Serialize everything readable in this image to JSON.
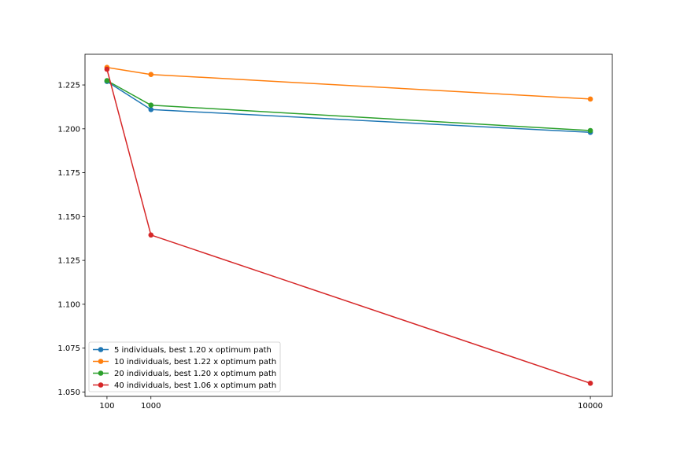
{
  "chart_data": {
    "type": "line",
    "title": "",
    "xlabel": "",
    "ylabel": "",
    "x": [
      100,
      1000,
      10000
    ],
    "xtick_labels": [
      "100",
      "1000",
      "10000"
    ],
    "ylim": [
      1.0475,
      1.2425
    ],
    "xlim": [
      -350,
      10450
    ],
    "yticks": [
      1.05,
      1.075,
      1.1,
      1.125,
      1.15,
      1.175,
      1.2,
      1.225
    ],
    "ytick_labels": [
      "1.050",
      "1.075",
      "1.100",
      "1.125",
      "1.150",
      "1.175",
      "1.200",
      "1.225"
    ],
    "grid": false,
    "legend_position": "lower-left",
    "series": [
      {
        "name": "5 individuals, best 1.20 x optimum path",
        "color": "#1f77b4",
        "values": [
          1.227,
          1.211,
          1.198
        ]
      },
      {
        "name": "10 individuals, best 1.22 x optimum path",
        "color": "#ff7f0e",
        "values": [
          1.235,
          1.231,
          1.217
        ]
      },
      {
        "name": "20 individuals, best 1.20 x optimum path",
        "color": "#2ca02c",
        "values": [
          1.2275,
          1.2135,
          1.199
        ]
      },
      {
        "name": "40 individuals, best 1.06 x optimum path",
        "color": "#d62728",
        "values": [
          1.234,
          1.1395,
          1.055
        ]
      }
    ]
  }
}
